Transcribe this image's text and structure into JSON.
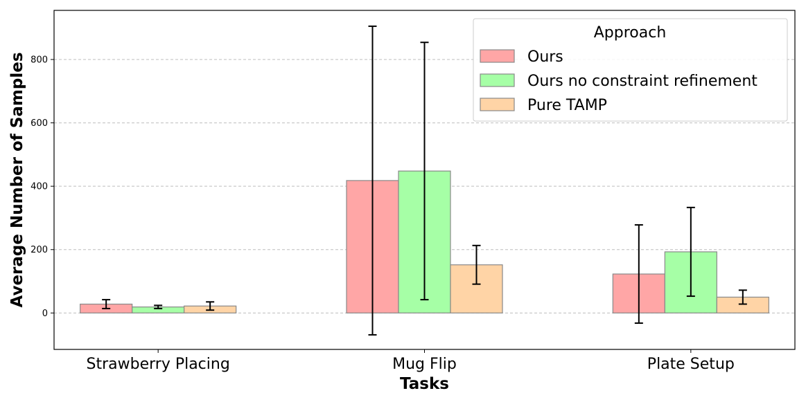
{
  "chart_data": {
    "type": "bar",
    "xlabel": "Tasks",
    "ylabel": "Average Number of Samples",
    "categories": [
      "Strawberry Placing",
      "Mug Flip",
      "Plate Setup"
    ],
    "ylim": [
      -115,
      955
    ],
    "yticks": [
      0,
      200,
      400,
      600,
      800
    ],
    "grid": "horizontal dashed",
    "legend": {
      "title": "Approach",
      "position": "top-right"
    },
    "series": [
      {
        "name": "Ours",
        "color": "#ffa6a6",
        "values": [
          28,
          418,
          123
        ],
        "errors": [
          14,
          487,
          155
        ]
      },
      {
        "name": "Ours no constraint refinement",
        "color": "#a6ffa6",
        "values": [
          19,
          448,
          193
        ],
        "errors": [
          5,
          406,
          140
        ]
      },
      {
        "name": "Pure TAMP",
        "color": "#ffd4a6",
        "values": [
          22,
          152,
          50
        ],
        "errors": [
          13,
          61,
          22
        ]
      }
    ]
  }
}
